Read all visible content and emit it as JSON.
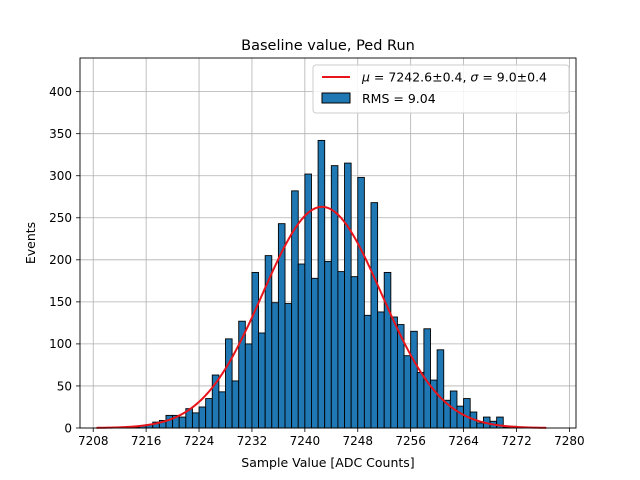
{
  "chart_data": {
    "type": "bar",
    "title": "Baseline value, Ped Run",
    "xlabel": "Sample Value [ADC Counts]",
    "ylabel": "Events",
    "xlim": [
      7206,
      7281
    ],
    "ylim": [
      0,
      440
    ],
    "xticks": [
      7208,
      7216,
      7224,
      7232,
      7240,
      7248,
      7256,
      7264,
      7272,
      7280
    ],
    "yticks": [
      0,
      50,
      100,
      150,
      200,
      250,
      300,
      350,
      400
    ],
    "grid": true,
    "legend_position": "top-right",
    "histogram": {
      "name": "RMS = 9.04",
      "color": "#1f77b4",
      "edge_color": "#000000",
      "bin_width": 1,
      "bin_starts": [
        7211,
        7212,
        7213,
        7214,
        7215,
        7216,
        7217,
        7218,
        7219,
        7220,
        7221,
        7222,
        7223,
        7224,
        7225,
        7226,
        7227,
        7228,
        7229,
        7230,
        7231,
        7232,
        7233,
        7234,
        7235,
        7236,
        7237,
        7238,
        7239,
        7240,
        7241,
        7242,
        7243,
        7244,
        7245,
        7246,
        7247,
        7248,
        7249,
        7250,
        7251,
        7252,
        7253,
        7254,
        7255,
        7256,
        7257,
        7258,
        7259,
        7260,
        7261,
        7262,
        7263,
        7264,
        7265,
        7266,
        7267,
        7268,
        7269,
        7270,
        7271,
        7272,
        7273,
        7274,
        7275,
        7276
      ],
      "values": [
        0,
        1,
        1,
        1,
        3,
        4,
        7,
        9,
        15,
        15,
        13,
        23,
        18,
        25,
        35,
        63,
        43,
        106,
        56,
        127,
        100,
        185,
        113,
        205,
        149,
        243,
        148,
        282,
        195,
        302,
        178,
        342,
        198,
        312,
        186,
        315,
        180,
        298,
        134,
        268,
        138,
        185,
        132,
        123,
        86,
        115,
        66,
        118,
        57,
        93,
        33,
        44,
        26,
        35,
        19,
        6,
        13,
        8,
        13,
        1,
        2,
        1,
        0,
        0,
        0,
        0
      ]
    },
    "fit": {
      "name_mu": "μ",
      "name_rest": " = 7242.6±0.4, ",
      "name_sigma": "σ",
      "name_tail": " = 9.0±0.4",
      "color": "#e8141b",
      "mu": 7242.6,
      "sigma": 9.0,
      "amplitude": 263,
      "x_range": [
        7208.5,
        7276.5
      ]
    }
  }
}
